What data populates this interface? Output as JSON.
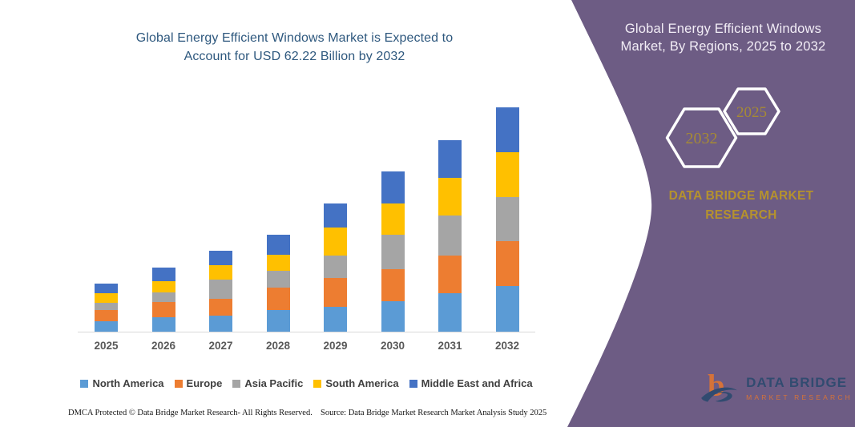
{
  "header": {
    "line1": "Global Energy Efficient Windows Market is Expected to",
    "line2": "Account for USD 62.22 Billion by 2032"
  },
  "chart_data": {
    "type": "bar",
    "stacked": true,
    "title": "Global Energy Efficient Windows Market is Expected to Account for USD 62.22 Billion by 2032",
    "unit": "USD Billion",
    "categories": [
      "2025",
      "2026",
      "2027",
      "2028",
      "2029",
      "2030",
      "2031",
      "2032"
    ],
    "series": [
      {
        "name": "North America",
        "color": "#5B9BD5",
        "values": [
          2.9,
          4.1,
          4.4,
          5.9,
          7.0,
          8.5,
          10.7,
          12.6
        ]
      },
      {
        "name": "Europe",
        "color": "#ED7D31",
        "values": [
          3.2,
          4.1,
          4.8,
          6.3,
          7.8,
          8.9,
          10.4,
          12.6
        ]
      },
      {
        "name": "Asia Pacific",
        "color": "#A5A5A5",
        "values": [
          1.9,
          2.6,
          5.2,
          4.8,
          6.3,
          9.6,
          11.1,
          12.2
        ]
      },
      {
        "name": "South America",
        "color": "#FFC000",
        "values": [
          2.6,
          3.3,
          4.1,
          4.4,
          7.8,
          8.5,
          10.4,
          12.4
        ]
      },
      {
        "name": "Middle East and Africa",
        "color": "#4472C4",
        "values": [
          2.8,
          3.7,
          3.9,
          5.6,
          6.7,
          8.9,
          10.5,
          12.4
        ]
      }
    ],
    "totals": [
      13.4,
      17.8,
      22.4,
      27.0,
      35.6,
      44.4,
      53.1,
      62.2
    ],
    "ylim": [
      0,
      65
    ],
    "grid": false,
    "legend_position": "bottom"
  },
  "sidebar": {
    "heading_line1": "Global Energy Efficient Windows",
    "heading_line2": "Market, By Regions, 2025 to 2032",
    "hexagon_back_year": "2032",
    "hexagon_front_year": "2025",
    "brand": "DATA BRIDGE MARKET RESEARCH",
    "logo_title": "DATA BRIDGE",
    "logo_subtitle": "MARKET RESEARCH"
  },
  "footer": {
    "dmca": "DMCA Protected © Data Bridge Market Research-  All Rights Reserved.",
    "source": "Source: Data Bridge Market Research  Market Analysis Study 2025"
  },
  "colors": {
    "panel_purple": "#6d5c84",
    "title_blue": "#2e587e",
    "gold": "#a68a35",
    "brand_gold": "#b5922e",
    "axis_gray": "#d9d9d9"
  }
}
